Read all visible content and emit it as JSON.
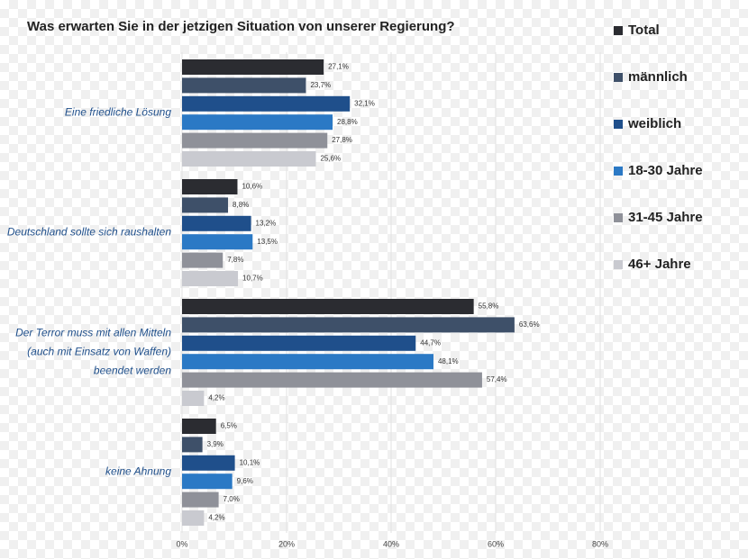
{
  "chart_data": {
    "type": "bar",
    "orientation": "horizontal",
    "title": "Was erwarten Sie in der jetzigen Situation von unserer Regierung?",
    "categories": [
      "Eine friedliche Lösung",
      "Deutschland sollte sich raushalten",
      "Der Terror muss mit allen Mitteln\n(auch mit Einsatz von Waffen)\nbeendet werden",
      "keine Ahnung"
    ],
    "series": [
      {
        "name": "Total",
        "color": "#2b2c31",
        "values": [
          27.1,
          10.6,
          55.8,
          6.5
        ],
        "value_labels": [
          "27,1%",
          "10,6%",
          "55,8%",
          "6,5%"
        ]
      },
      {
        "name": "männlich",
        "color": "#3e5069",
        "values": [
          23.7,
          8.8,
          63.6,
          3.9
        ],
        "value_labels": [
          "23,7%",
          "8,8%",
          "63,6%",
          "3,9%"
        ]
      },
      {
        "name": "weiblich",
        "color": "#1f4f8b",
        "values": [
          32.1,
          13.2,
          44.7,
          10.1
        ],
        "value_labels": [
          "32,1%",
          "13,2%",
          "44,7%",
          "10,1%"
        ]
      },
      {
        "name": "18-30 Jahre",
        "color": "#2b79c5",
        "values": [
          28.8,
          13.5,
          48.1,
          9.6
        ],
        "value_labels": [
          "28,8%",
          "13,5%",
          "48,1%",
          "9,6%"
        ]
      },
      {
        "name": "31-45 Jahre",
        "color": "#8f9199",
        "values": [
          27.8,
          7.8,
          57.4,
          7.0
        ],
        "value_labels": [
          "27,8%",
          "7,8%",
          "57,4%",
          "7,0%"
        ]
      },
      {
        "name": "46+ Jahre",
        "color": "#c9cad0",
        "values": [
          25.6,
          10.7,
          4.2,
          4.2
        ],
        "value_labels": [
          "25,6%",
          "10,7%",
          "4,2%",
          "4,2%"
        ]
      }
    ],
    "xlim": [
      0,
      80
    ],
    "xticks": [
      {
        "value": 0,
        "label": "0%"
      },
      {
        "value": 20,
        "label": "20%"
      },
      {
        "value": 40,
        "label": "40%"
      },
      {
        "value": 60,
        "label": "60%"
      },
      {
        "value": 80,
        "label": "80%"
      }
    ],
    "grid": true,
    "legend": "right"
  }
}
